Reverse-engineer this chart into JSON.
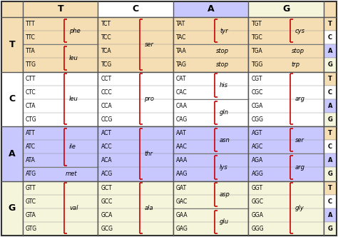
{
  "bg_yellow_t": "#F5DEB3",
  "bg_white_c": "#FFFFFF",
  "bg_blue_a": "#C8C8FF",
  "bg_yellow_g": "#F5F5DC",
  "col_header_t": "#F5DEB3",
  "col_header_c": "#FFFFFF",
  "col_header_a": "#C8C8FF",
  "col_header_g": "#F5F5DC",
  "bracket_color": "#CC0000",
  "border_color": "#888888",
  "border_dark": "#555555",
  "figsize": [
    4.74,
    3.32
  ],
  "dpi": 100,
  "row_labels": [
    "T",
    "C",
    "A",
    "G"
  ],
  "col_labels": [
    "T",
    "C",
    "A",
    "G"
  ]
}
